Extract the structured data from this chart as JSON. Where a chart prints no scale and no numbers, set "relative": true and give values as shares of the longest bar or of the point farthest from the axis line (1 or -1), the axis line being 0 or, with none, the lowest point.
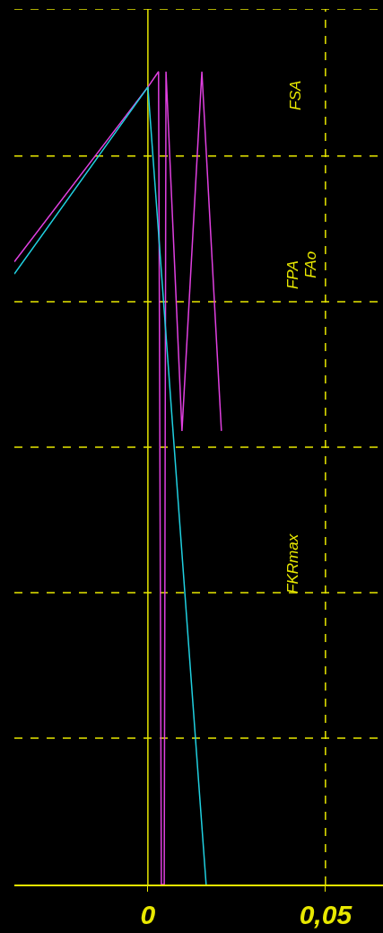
{
  "chart_data": {
    "type": "line",
    "relative": true,
    "xlim": [
      -0.0376,
      0.0662
    ],
    "xticks": [
      0,
      {
        "value": 0.05,
        "label": "0,05"
      }
    ],
    "tick_labels": "x",
    "marker": "none",
    "line_style": "solid",
    "series": [
      {
        "color": "#e040e0",
        "x": [
          -0.0376,
          0,
          0.003,
          0.0038,
          0.0046,
          0.0051,
          0.0096,
          0.0152,
          0.0207
        ],
        "values": [
          0.766,
          0.981,
          1.0,
          0,
          0,
          1.0,
          0.558,
          1.0,
          0.558
        ]
      },
      {
        "color": "#20d0e0",
        "x": [
          -0.0376,
          0,
          0.0164
        ],
        "values": [
          0.751,
          0.981,
          0
        ]
      }
    ],
    "ref_lines": [
      {
        "axis": "x",
        "value": 0,
        "color": "#e8e800",
        "line_style": "solid"
      },
      {
        "axis": "x",
        "value": 0.05,
        "color": "#e8e800",
        "line_style": "dashed"
      },
      {
        "axis": "y",
        "value": 1.077,
        "color": "#e8e800",
        "line_style": "dashed"
      },
      {
        "axis": "y",
        "value": 0.896,
        "color": "#e8e800",
        "line_style": "dashed"
      },
      {
        "axis": "y",
        "value": 0.717,
        "color": "#e8e800",
        "line_style": "dashed"
      },
      {
        "axis": "y",
        "value": 0.538,
        "color": "#e8e800",
        "line_style": "dashed"
      },
      {
        "axis": "y",
        "value": 0.359,
        "color": "#e8e800",
        "line_style": "dashed"
      },
      {
        "axis": "y",
        "value": 0.18,
        "color": "#e8e800",
        "line_style": "dashed"
      }
    ],
    "annotations": [
      "FSA",
      "FPA",
      "FAo",
      "FKRmax"
    ]
  }
}
